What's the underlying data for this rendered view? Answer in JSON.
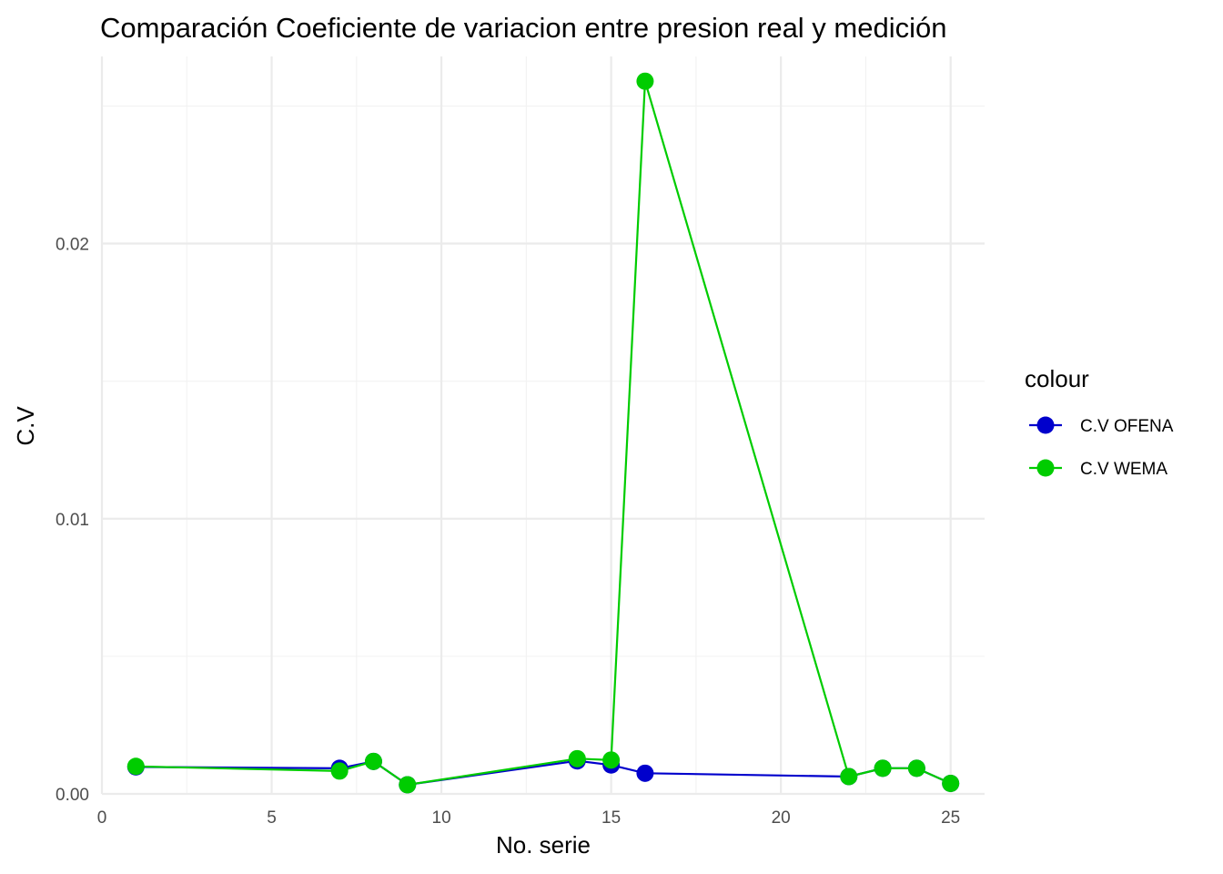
{
  "chart_data": {
    "type": "line",
    "title": "Comparación Coeficiente de variacion entre  presion real y medición",
    "xlabel": "No. serie",
    "ylabel": "C.V",
    "xlim": [
      0,
      26
    ],
    "ylim": [
      0,
      0.0268
    ],
    "x_ticks": [
      0,
      5,
      10,
      15,
      20,
      25
    ],
    "x_tick_labels": [
      "0",
      "5",
      "10",
      "15",
      "20",
      "25"
    ],
    "y_ticks": [
      0,
      0.01,
      0.02
    ],
    "y_tick_labels": [
      "0.00",
      "0.01",
      "0.02"
    ],
    "grid": true,
    "legend": {
      "title": "colour",
      "position": "right"
    },
    "series": [
      {
        "name": "C.V OFENA",
        "color": "#0000cc",
        "x": [
          1,
          7,
          8,
          9,
          14,
          15,
          16,
          22,
          23,
          24,
          25
        ],
        "y": [
          0.00098,
          0.00093,
          0.00118,
          0.00033,
          0.0012,
          0.00105,
          0.00075,
          0.00063,
          0.00093,
          0.00093,
          0.00038
        ]
      },
      {
        "name": "C.V WEMA",
        "color": "#00cc00",
        "x": [
          1,
          7,
          8,
          9,
          14,
          15,
          16,
          22,
          23,
          24,
          25
        ],
        "y": [
          0.001,
          0.00083,
          0.00118,
          0.00033,
          0.00128,
          0.00123,
          0.0259,
          0.00063,
          0.00093,
          0.00093,
          0.00038
        ]
      }
    ]
  }
}
